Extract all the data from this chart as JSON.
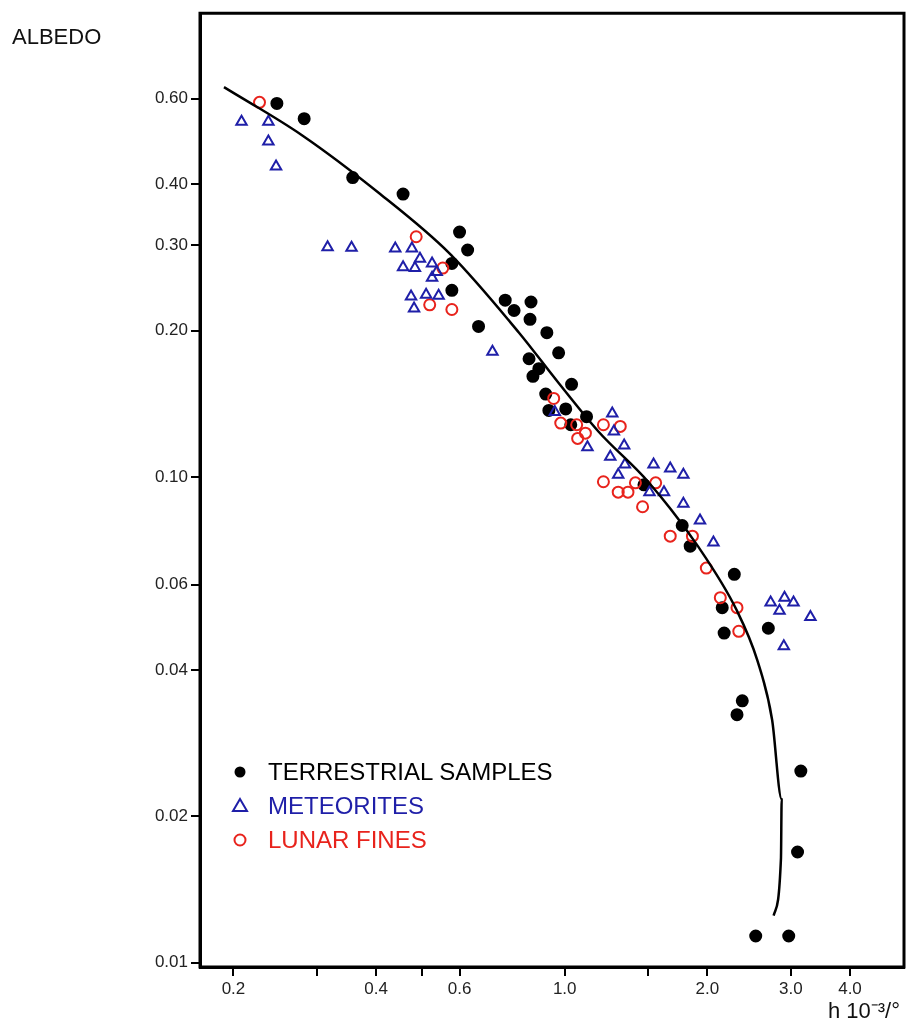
{
  "chart_data": {
    "type": "scatter",
    "xlabel": "h 10⁻³/°",
    "ylabel": "ALBEDO",
    "log": "xy",
    "grid": false,
    "legend": "bottom left",
    "xlim": [
      0.17,
      5.2
    ],
    "ylim": [
      0.0098,
      0.9
    ],
    "xticks": [
      0.2,
      {
        "value": 0.3,
        "label": null
      },
      0.4,
      {
        "value": 0.5,
        "label": null
      },
      0.6,
      {
        "value": 1.0,
        "label": "1.0"
      },
      {
        "value": 1.5,
        "label": null
      },
      {
        "value": 2.0,
        "label": "2.0"
      },
      {
        "value": 3.0,
        "label": "3.0"
      },
      {
        "value": 4.0,
        "label": "4.0"
      }
    ],
    "yticks": [
      0.01,
      0.02,
      0.04,
      0.06,
      {
        "value": 0.1,
        "label": "0.10"
      },
      {
        "value": 0.2,
        "label": "0.20"
      },
      {
        "value": 0.3,
        "label": "0.30"
      },
      {
        "value": 0.4,
        "label": "0.40"
      },
      {
        "value": 0.6,
        "label": "0.60"
      }
    ],
    "series": [
      {
        "name": "TERRESTRIAL SAMPLES",
        "type": "scatter",
        "marker": "circle",
        "color": "#000000",
        "x": [
          0.247,
          0.282,
          0.357,
          0.456,
          0.6,
          0.624,
          0.578,
          0.578,
          0.658,
          0.749,
          0.782,
          0.849,
          0.845,
          0.917,
          0.841,
          0.882,
          0.857,
          0.971,
          0.926,
          0.912,
          1.034,
          1.03,
          1.005,
          1.112,
          1.47,
          1.77,
          1.84,
          2.28,
          2.15,
          2.17,
          2.69,
          2.37,
          2.31,
          3.15,
          3.1,
          2.53,
          2.97
        ],
        "values": [
          0.587,
          0.546,
          0.413,
          0.382,
          0.319,
          0.293,
          0.275,
          0.242,
          0.204,
          0.231,
          0.22,
          0.229,
          0.211,
          0.198,
          0.175,
          0.167,
          0.161,
          0.18,
          0.137,
          0.148,
          0.155,
          0.128,
          0.138,
          0.133,
          0.0963,
          0.0794,
          0.072,
          0.063,
          0.0538,
          0.0477,
          0.0488,
          0.0346,
          0.0324,
          0.0248,
          0.0169,
          0.01135,
          0.01135
        ]
      },
      {
        "name": "METEORITES",
        "type": "scatter",
        "marker": "triangle",
        "color": "#1f1fa8",
        "x": [
          0.208,
          0.237,
          0.237,
          0.246,
          0.316,
          0.355,
          0.439,
          0.476,
          0.456,
          0.483,
          0.495,
          0.525,
          0.537,
          0.525,
          0.474,
          0.51,
          0.542,
          0.481,
          0.704,
          0.953,
          1.26,
          1.27,
          1.335,
          1.117,
          1.248,
          1.34,
          1.297,
          1.54,
          1.67,
          1.78,
          1.62,
          1.51,
          1.78,
          1.93,
          2.06,
          2.72,
          2.91,
          3.04,
          2.84,
          3.3,
          2.9
        ],
        "values": [
          0.538,
          0.538,
          0.49,
          0.435,
          0.297,
          0.296,
          0.295,
          0.295,
          0.27,
          0.269,
          0.281,
          0.275,
          0.264,
          0.257,
          0.235,
          0.237,
          0.236,
          0.222,
          0.181,
          0.136,
          0.135,
          0.124,
          0.116,
          0.115,
          0.11,
          0.106,
          0.101,
          0.106,
          0.104,
          0.101,
          0.093,
          0.093,
          0.088,
          0.0813,
          0.0733,
          0.0551,
          0.0564,
          0.0551,
          0.053,
          0.0515,
          0.0448
        ]
      },
      {
        "name": "LUNAR FINES",
        "type": "scatter",
        "marker": "circle",
        "color": "#e8231c",
        "x": [
          0.227,
          0.486,
          0.553,
          0.519,
          0.578,
          0.948,
          0.981,
          1.065,
          1.06,
          1.106,
          1.207,
          1.31,
          1.207,
          1.297,
          1.36,
          1.41,
          1.46,
          1.556,
          1.67,
          1.86,
          1.99,
          2.13,
          2.31,
          2.33
        ],
        "values": [
          0.59,
          0.312,
          0.269,
          0.226,
          0.221,
          0.145,
          0.129,
          0.12,
          0.128,
          0.123,
          0.128,
          0.127,
          0.0977,
          0.093,
          0.093,
          0.0972,
          0.0868,
          0.0972,
          0.0755,
          0.0755,
          0.0649,
          0.0564,
          0.0538,
          0.0481
        ]
      },
      {
        "type": "line",
        "marker": "none",
        "line_style": "solid",
        "color": "#000000",
        "x": [
          0.191,
          0.278,
          0.408,
          0.572,
          0.801,
          0.971,
          1.178,
          1.5,
          1.91,
          2.31,
          2.55,
          2.74,
          2.87,
          2.86,
          2.76
        ],
        "values": [
          0.634,
          0.506,
          0.382,
          0.288,
          0.198,
          0.156,
          0.124,
          0.0977,
          0.072,
          0.053,
          0.0419,
          0.0316,
          0.0217,
          0.0164,
          0.0125
        ]
      }
    ]
  }
}
